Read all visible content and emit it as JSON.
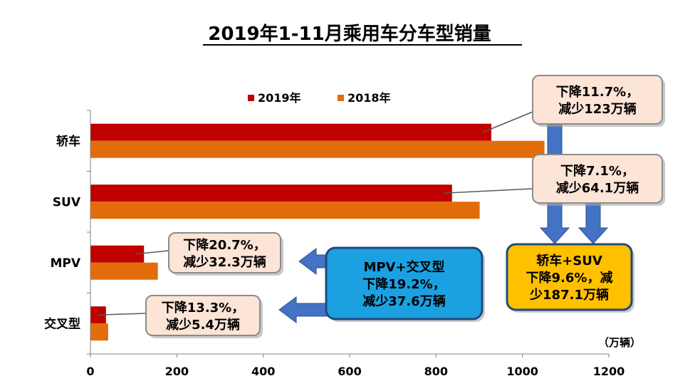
{
  "chart_data": {
    "type": "bar",
    "orientation": "horizontal",
    "title": "2019年1-11月乘用车分车型销量",
    "unit": "（万辆）",
    "categories": [
      "轿车",
      "SUV",
      "MPV",
      "交叉型"
    ],
    "series": [
      {
        "name": "2019年",
        "color": "#C00000",
        "values": [
          928,
          837,
          124,
          36
        ]
      },
      {
        "name": "2018年",
        "color": "#E36C0A",
        "values": [
          1051,
          901,
          156,
          41
        ]
      }
    ],
    "xlim": [
      0,
      1200
    ],
    "x_ticks": [
      "0",
      "200",
      "400",
      "600",
      "800",
      "1000",
      "1200"
    ],
    "legend_position": "top",
    "annotations": [
      {
        "id": "sedan",
        "lines": [
          "下降11.7%，",
          "减少123万辆"
        ],
        "fill": "#FCE4D6",
        "stroke": "#8C8C8C"
      },
      {
        "id": "suv",
        "lines": [
          "下降7.1%，",
          "减少64.1万辆"
        ],
        "fill": "#FCE4D6",
        "stroke": "#8C8C8C"
      },
      {
        "id": "mpv",
        "lines": [
          "下降20.7%，",
          "减少32.3万辆"
        ],
        "fill": "#FCE4D6",
        "stroke": "#8C8C8C"
      },
      {
        "id": "crossover",
        "lines": [
          "下降13.3%，",
          "减少5.4万辆"
        ],
        "fill": "#FCE4D6",
        "stroke": "#8C8C8C"
      },
      {
        "id": "mpv-crossover",
        "lines": [
          "MPV+交叉型",
          "下降19.2%，",
          "减少37.6万辆"
        ],
        "fill": "#1BA1E2",
        "stroke": "#1F497D"
      },
      {
        "id": "sedan-suv",
        "lines": [
          "轿车+SUV",
          "下降9.6%，减",
          "少187.1万辆"
        ],
        "fill": "#FFC000",
        "stroke": "#1F497D"
      }
    ],
    "arrow_color": "#4472C4"
  }
}
